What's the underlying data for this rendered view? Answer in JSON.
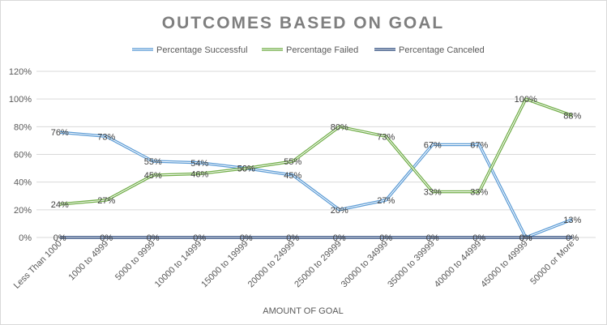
{
  "chart_data": {
    "type": "line",
    "title": "OUTCOMES BASED ON GOAL",
    "xlabel": "AMOUNT OF GOAL",
    "ylabel": "",
    "ylim": [
      0,
      120
    ],
    "y_ticks": [
      "0%",
      "20%",
      "40%",
      "60%",
      "80%",
      "100%",
      "120%"
    ],
    "grid": true,
    "legend_position": "top",
    "categories": [
      "Less Than 1000",
      "1000 to 4999",
      "5000 to 9999",
      "10000 to 14999",
      "15000 to 19999",
      "20000 to 24999",
      "25000 to 29999",
      "30000 to 34999",
      "35000 to 39999",
      "40000 to 44999",
      "45000 to 49999",
      "50000 or More"
    ],
    "series": [
      {
        "name": "Percentage Successful",
        "color": "#5b9bd5",
        "values": [
          76,
          73,
          55,
          54,
          50,
          45,
          20,
          27,
          67,
          67,
          0,
          13
        ],
        "labels": [
          "76%",
          "73%",
          "55%",
          "54%",
          "50%",
          "45%",
          "20%",
          "27%",
          "67%",
          "67%",
          "0%",
          "13%"
        ]
      },
      {
        "name": "Percentage Failed",
        "color": "#70ad47",
        "values": [
          24,
          27,
          45,
          46,
          50,
          55,
          80,
          73,
          33,
          33,
          100,
          88
        ],
        "labels": [
          "24%",
          "27%",
          "45%",
          "46%",
          "50%",
          "55%",
          "80%",
          "73%",
          "33%",
          "33%",
          "100%",
          "88%"
        ]
      },
      {
        "name": "Percentage Canceled",
        "color": "#264478",
        "values": [
          0,
          0,
          0,
          0,
          0,
          0,
          0,
          0,
          0,
          0,
          0,
          0
        ],
        "labels": [
          "0%",
          "0%",
          "0%",
          "0%",
          "0%",
          "0%",
          "0%",
          "0%",
          "0%",
          "0%",
          "0%",
          "0%"
        ]
      }
    ]
  }
}
